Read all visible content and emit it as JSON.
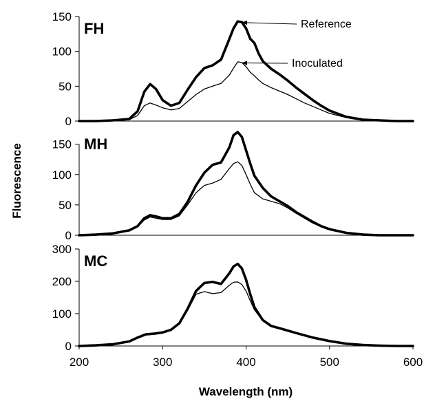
{
  "chart_data": [
    {
      "type": "line",
      "panel_label": "FH",
      "ylim": [
        0,
        150
      ],
      "yticks": [
        0,
        50,
        100,
        150
      ],
      "xlim": [
        200,
        600
      ],
      "series": [
        {
          "name": "Reference",
          "x": [
            200,
            220,
            240,
            260,
            270,
            278,
            285,
            292,
            300,
            310,
            320,
            330,
            340,
            350,
            360,
            370,
            380,
            385,
            390,
            395,
            400,
            405,
            410,
            415,
            420,
            430,
            440,
            450,
            460,
            470,
            480,
            490,
            500,
            520,
            540,
            560,
            580,
            600
          ],
          "y": [
            0,
            0,
            1,
            3,
            14,
            42,
            53,
            46,
            30,
            22,
            26,
            45,
            63,
            76,
            80,
            88,
            118,
            133,
            143,
            142,
            133,
            118,
            112,
            97,
            86,
            75,
            67,
            58,
            48,
            39,
            30,
            22,
            15,
            6,
            2,
            1,
            0,
            0
          ]
        },
        {
          "name": "Inoculated",
          "x": [
            200,
            220,
            240,
            260,
            270,
            278,
            285,
            292,
            300,
            310,
            320,
            330,
            340,
            350,
            360,
            370,
            380,
            385,
            390,
            395,
            400,
            405,
            410,
            415,
            420,
            430,
            440,
            450,
            460,
            470,
            480,
            490,
            500,
            520,
            540,
            560,
            580,
            600
          ],
          "y": [
            0,
            0,
            1,
            2,
            8,
            22,
            26,
            23,
            19,
            16,
            18,
            28,
            38,
            46,
            50,
            54,
            66,
            76,
            85,
            84,
            78,
            70,
            65,
            59,
            54,
            48,
            43,
            38,
            32,
            26,
            21,
            16,
            11,
            5,
            2,
            1,
            0,
            0
          ]
        }
      ],
      "annotations": [
        {
          "text": "Reference",
          "series": "Reference",
          "at_x": 393
        },
        {
          "text": "Inoculated",
          "series": "Inoculated",
          "at_x": 393
        }
      ]
    },
    {
      "type": "line",
      "panel_label": "MH",
      "ylim": [
        0,
        170
      ],
      "yticks": [
        0,
        50,
        100,
        150
      ],
      "xlim": [
        200,
        600
      ],
      "series": [
        {
          "name": "Reference",
          "x": [
            200,
            220,
            240,
            260,
            270,
            278,
            285,
            292,
            300,
            310,
            320,
            330,
            340,
            350,
            360,
            370,
            380,
            385,
            390,
            395,
            400,
            405,
            410,
            420,
            430,
            440,
            450,
            460,
            470,
            480,
            490,
            500,
            520,
            540,
            560,
            580,
            600
          ],
          "y": [
            0,
            1,
            3,
            8,
            15,
            28,
            33,
            31,
            28,
            28,
            35,
            55,
            82,
            103,
            116,
            120,
            145,
            165,
            170,
            162,
            140,
            118,
            98,
            78,
            64,
            56,
            48,
            38,
            30,
            22,
            15,
            10,
            4,
            1,
            0,
            0,
            0
          ]
        },
        {
          "name": "Inoculated",
          "x": [
            200,
            220,
            240,
            260,
            270,
            278,
            285,
            292,
            300,
            310,
            320,
            330,
            340,
            350,
            360,
            370,
            380,
            385,
            390,
            395,
            400,
            405,
            410,
            420,
            430,
            440,
            450,
            460,
            470,
            480,
            490,
            500,
            520,
            540,
            560,
            580,
            600
          ],
          "y": [
            0,
            1,
            3,
            8,
            14,
            25,
            30,
            28,
            26,
            26,
            32,
            50,
            70,
            82,
            86,
            92,
            110,
            118,
            121,
            115,
            100,
            84,
            70,
            60,
            56,
            52,
            45,
            36,
            28,
            20,
            14,
            9,
            3,
            1,
            0,
            0,
            0
          ]
        }
      ]
    },
    {
      "type": "line",
      "panel_label": "MC",
      "ylim": [
        0,
        300
      ],
      "yticks": [
        0,
        100,
        200,
        300
      ],
      "xlim": [
        200,
        600
      ],
      "xticks": [
        200,
        300,
        400,
        500,
        600
      ],
      "xlabel": "Wavelength (nm)",
      "series": [
        {
          "name": "Reference",
          "x": [
            200,
            220,
            240,
            260,
            270,
            280,
            290,
            300,
            310,
            320,
            330,
            340,
            350,
            360,
            370,
            380,
            385,
            390,
            395,
            400,
            405,
            410,
            420,
            430,
            440,
            460,
            480,
            500,
            520,
            540,
            560,
            580,
            600
          ],
          "y": [
            0,
            2,
            5,
            14,
            26,
            36,
            38,
            42,
            50,
            70,
            115,
            170,
            195,
            198,
            192,
            225,
            246,
            254,
            240,
            205,
            160,
            120,
            80,
            62,
            55,
            40,
            26,
            15,
            7,
            3,
            1,
            0,
            0
          ]
        },
        {
          "name": "Inoculated",
          "x": [
            200,
            220,
            240,
            260,
            270,
            280,
            290,
            300,
            310,
            320,
            330,
            340,
            350,
            360,
            370,
            380,
            385,
            390,
            395,
            400,
            405,
            410,
            420,
            430,
            440,
            460,
            480,
            500,
            520,
            540,
            560,
            580,
            600
          ],
          "y": [
            0,
            2,
            5,
            14,
            26,
            36,
            38,
            42,
            50,
            68,
            110,
            160,
            168,
            162,
            165,
            188,
            197,
            198,
            190,
            170,
            140,
            112,
            78,
            62,
            55,
            40,
            26,
            15,
            7,
            3,
            1,
            0,
            0
          ]
        }
      ]
    }
  ],
  "ylabel": "Fluorescence"
}
